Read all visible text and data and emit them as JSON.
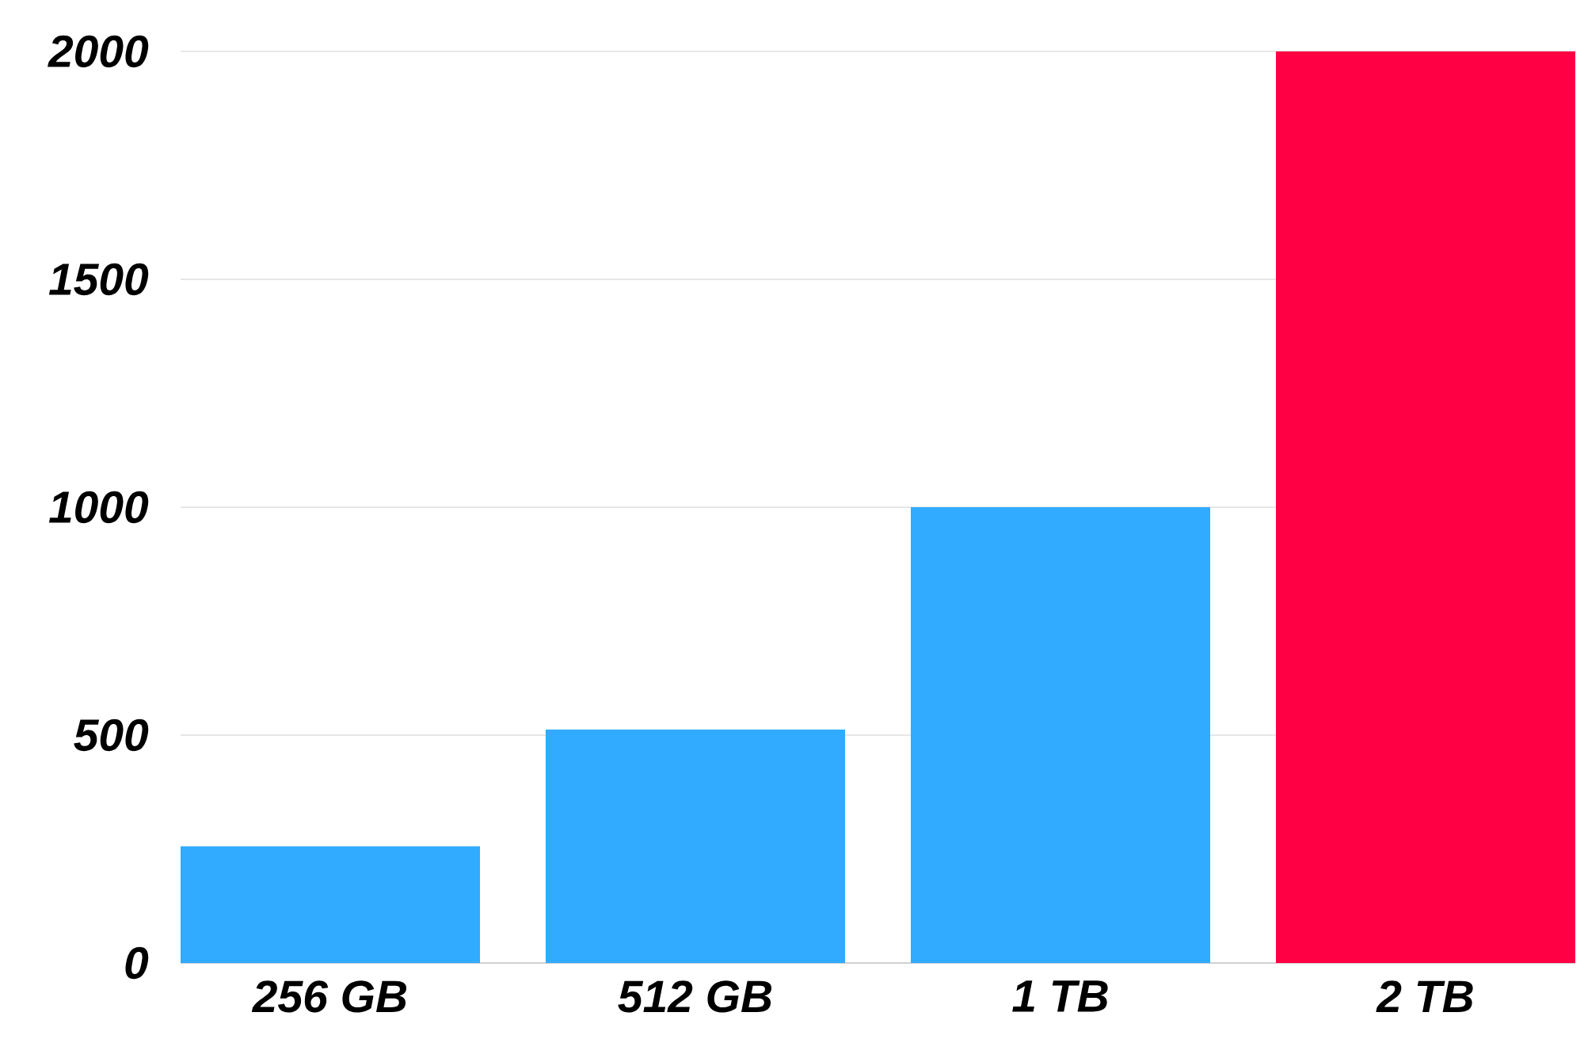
{
  "chart_data": {
    "type": "bar",
    "categories": [
      "256 GB",
      "512 GB",
      "1 TB",
      "2 TB"
    ],
    "values": [
      256,
      512,
      1000,
      2000
    ],
    "colors": [
      "#30abff",
      "#30abff",
      "#30abff",
      "#ff0044"
    ],
    "ylim": [
      0,
      2000
    ],
    "yticks": [
      0,
      500,
      1000,
      1500,
      2000
    ],
    "grid": "y"
  }
}
